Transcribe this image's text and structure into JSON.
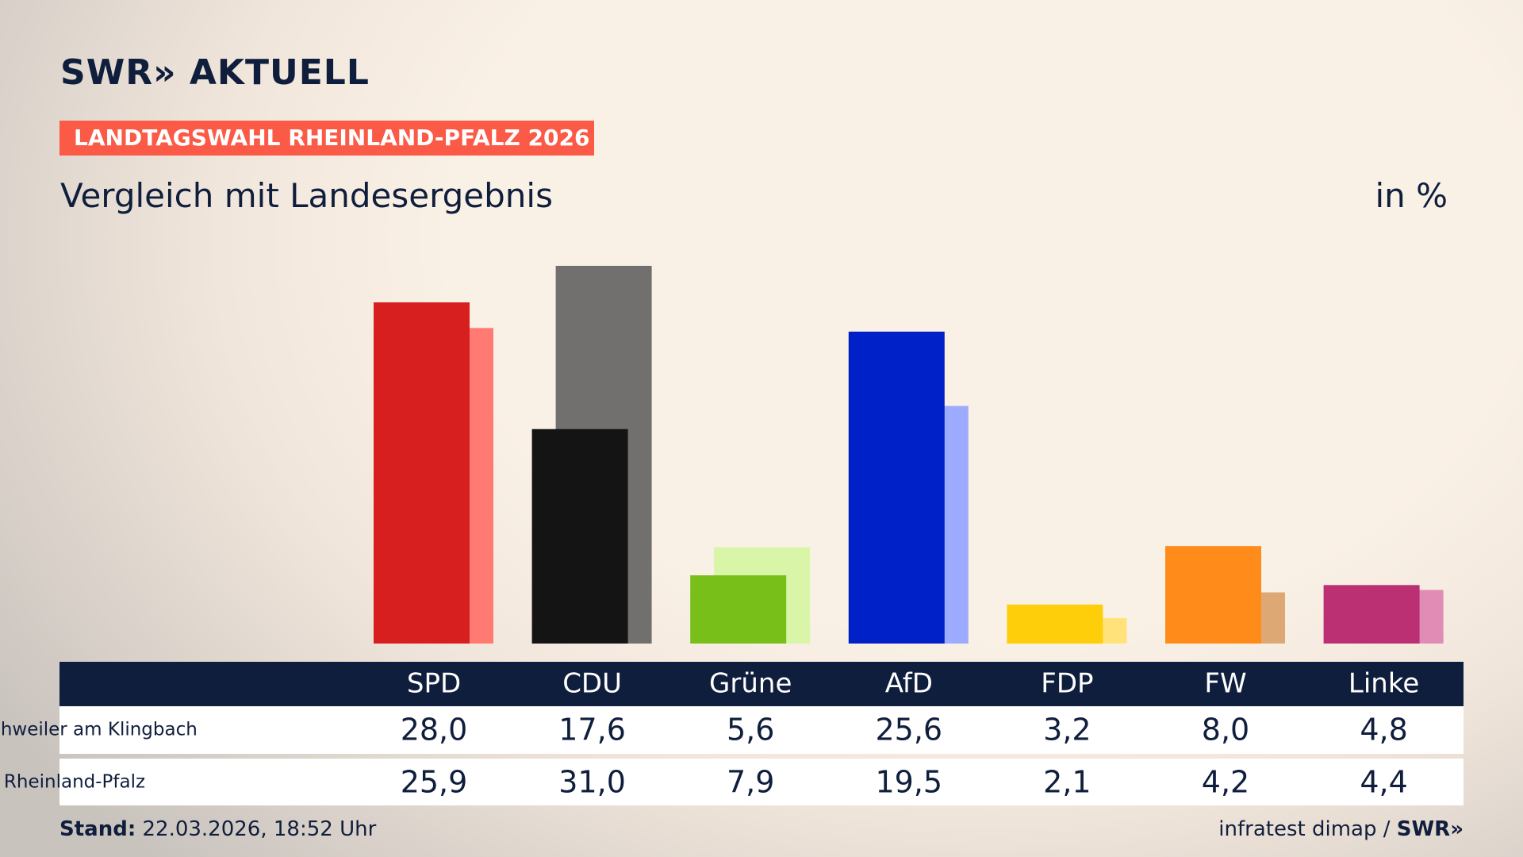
{
  "header": {
    "logo": "SWR» AKTUELL",
    "badge": "LANDTAGSWAHL RHEINLAND-PFALZ 2026"
  },
  "chart_data": {
    "type": "bar",
    "title": "Vergleich mit Landesergebnis",
    "unit": "in %",
    "categories": [
      "SPD",
      "CDU",
      "Grüne",
      "AfD",
      "FDP",
      "FW",
      "Linke"
    ],
    "series": [
      {
        "name": "Münchweiler am Klingbach",
        "colors": [
          "#d71f1f",
          "#141414",
          "#79bf1a",
          "#0021c8",
          "#ffce0b",
          "#ff8c1a",
          "#bb2f73"
        ],
        "values": [
          28.0,
          17.6,
          5.6,
          25.6,
          3.2,
          8.0,
          4.8
        ],
        "value_labels": [
          "28,0",
          "17,6",
          "5,6",
          "25,6",
          "3,2",
          "8,0",
          "4,8"
        ]
      },
      {
        "name": "Rheinland-Pfalz",
        "colors": [
          "#ff7a73",
          "#72706e",
          "#d8f5a8",
          "#9dabff",
          "#ffe37a",
          "#dea875",
          "#e08cb4"
        ],
        "values": [
          25.9,
          31.0,
          7.9,
          19.5,
          2.1,
          4.2,
          4.4
        ],
        "value_labels": [
          "25,9",
          "31,0",
          "7,9",
          "19,5",
          "2,1",
          "4,2",
          "4,4"
        ]
      }
    ]
  },
  "footer": {
    "stand_label": "Stand:",
    "stand": "22.03.2026, 18:52 Uhr",
    "source": "infratest dimap /",
    "source_brand": "SWR»"
  }
}
